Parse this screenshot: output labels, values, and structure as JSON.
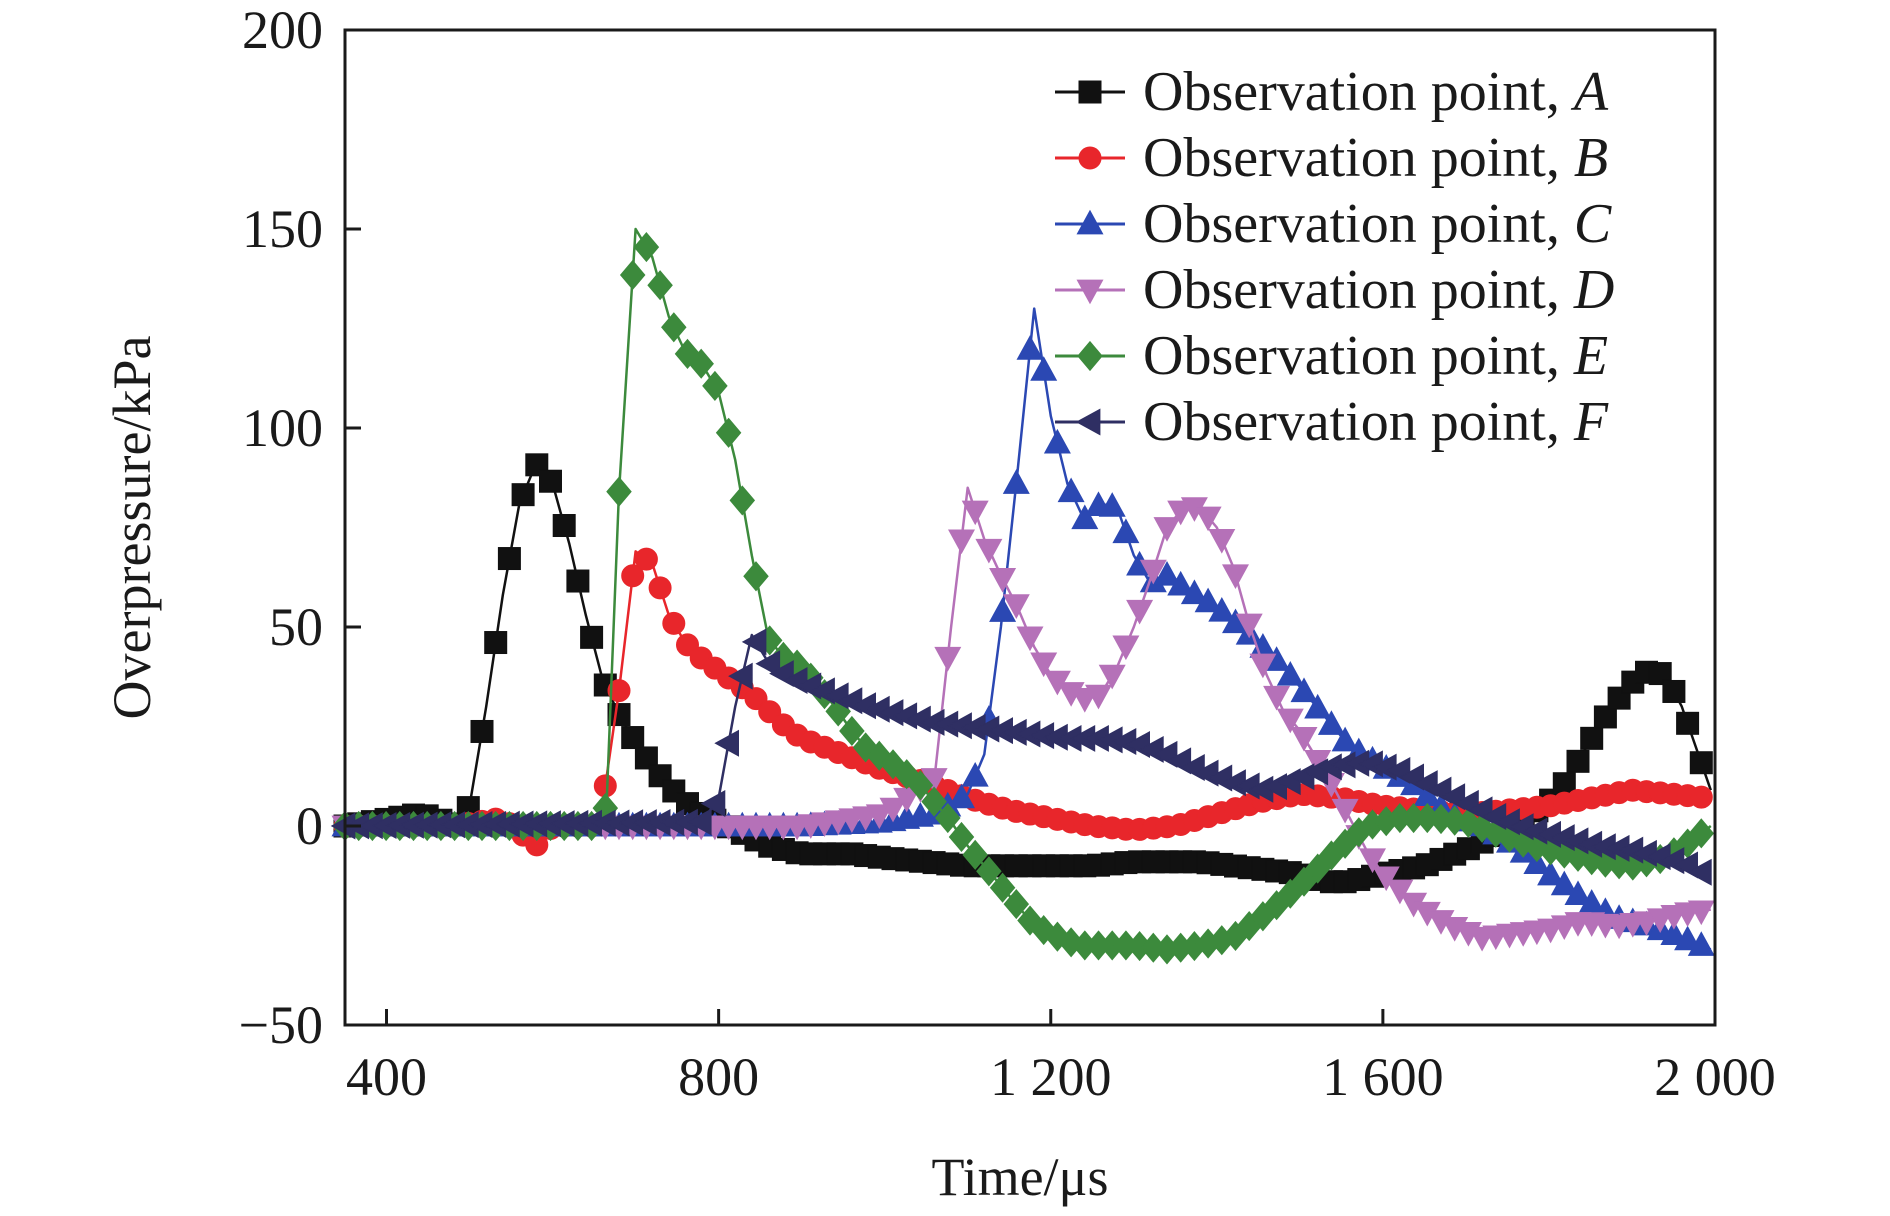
{
  "chart_data": {
    "type": "line",
    "title": "",
    "xlabel": "Time/μs",
    "ylabel": "Overpressure/kPa",
    "xlim": [
      350,
      2000
    ],
    "ylim": [
      -50,
      200
    ],
    "xticks": [
      400,
      800,
      1200,
      1600,
      2000
    ],
    "xtick_labels": [
      "400",
      "800",
      "1 200",
      "1 600",
      "2 000"
    ],
    "yticks": [
      -50,
      0,
      50,
      100,
      150,
      200
    ],
    "ytick_labels": [
      "−50",
      "0",
      "50",
      "100",
      "150",
      "200"
    ],
    "grid": false,
    "legend_position": "top-right",
    "series": [
      {
        "name": "Observation point, A",
        "legend_prefix": "Observation point, ",
        "legend_suffix": "A",
        "color": "#111111",
        "marker": "square",
        "points": [
          [
            350,
            0
          ],
          [
            440,
            3
          ],
          [
            460,
            2
          ],
          [
            480,
            0
          ],
          [
            500,
            5
          ],
          [
            520,
            30
          ],
          [
            540,
            58
          ],
          [
            560,
            81
          ],
          [
            580,
            91
          ],
          [
            600,
            86
          ],
          [
            620,
            71
          ],
          [
            640,
            53
          ],
          [
            660,
            37
          ],
          [
            680,
            28
          ],
          [
            700,
            21
          ],
          [
            720,
            15
          ],
          [
            740,
            10
          ],
          [
            760,
            6
          ],
          [
            780,
            3
          ],
          [
            800,
            1
          ],
          [
            860,
            -5
          ],
          [
            900,
            -7
          ],
          [
            960,
            -7
          ],
          [
            1000,
            -8
          ],
          [
            1100,
            -10
          ],
          [
            1200,
            -10
          ],
          [
            1250,
            -10
          ],
          [
            1300,
            -9
          ],
          [
            1340,
            -9
          ],
          [
            1380,
            -9
          ],
          [
            1420,
            -10
          ],
          [
            1460,
            -11
          ],
          [
            1500,
            -12
          ],
          [
            1530,
            -14
          ],
          [
            1560,
            -14
          ],
          [
            1600,
            -12
          ],
          [
            1650,
            -10
          ],
          [
            1700,
            -6
          ],
          [
            1760,
            0
          ],
          [
            1800,
            6
          ],
          [
            1820,
            11
          ],
          [
            1840,
            18
          ],
          [
            1860,
            25
          ],
          [
            1880,
            31
          ],
          [
            1900,
            36
          ],
          [
            1920,
            39
          ],
          [
            1940,
            38
          ],
          [
            1960,
            30
          ],
          [
            1980,
            18
          ],
          [
            1995,
            9
          ]
        ]
      },
      {
        "name": "Observation point, B",
        "legend_prefix": "Observation point, ",
        "legend_suffix": "B",
        "color": "#e8262b",
        "marker": "circle",
        "points": [
          [
            350,
            0
          ],
          [
            480,
            0
          ],
          [
            540,
            2
          ],
          [
            580,
            -5
          ],
          [
            600,
            0
          ],
          [
            650,
            0
          ],
          [
            660,
            5
          ],
          [
            680,
            34
          ],
          [
            700,
            69
          ],
          [
            720,
            66
          ],
          [
            740,
            53
          ],
          [
            760,
            46
          ],
          [
            780,
            42
          ],
          [
            800,
            39
          ],
          [
            820,
            36
          ],
          [
            840,
            33
          ],
          [
            860,
            29
          ],
          [
            880,
            25
          ],
          [
            900,
            22
          ],
          [
            950,
            18
          ],
          [
            1000,
            14
          ],
          [
            1050,
            11
          ],
          [
            1100,
            7
          ],
          [
            1150,
            4
          ],
          [
            1200,
            2
          ],
          [
            1250,
            0
          ],
          [
            1300,
            -1
          ],
          [
            1350,
            0
          ],
          [
            1400,
            3
          ],
          [
            1450,
            6
          ],
          [
            1500,
            8
          ],
          [
            1550,
            7
          ],
          [
            1600,
            5
          ],
          [
            1650,
            4
          ],
          [
            1700,
            3
          ],
          [
            1750,
            4
          ],
          [
            1800,
            5
          ],
          [
            1850,
            7
          ],
          [
            1900,
            9
          ],
          [
            1950,
            8
          ],
          [
            1995,
            7
          ]
        ]
      },
      {
        "name": "Observation point, C",
        "legend_prefix": "Observation point, ",
        "legend_suffix": "C",
        "color": "#2b48b3",
        "marker": "triangle-up",
        "points": [
          [
            350,
            0
          ],
          [
            900,
            0
          ],
          [
            1000,
            1
          ],
          [
            1060,
            3
          ],
          [
            1100,
            8
          ],
          [
            1120,
            18
          ],
          [
            1140,
            50
          ],
          [
            1160,
            89
          ],
          [
            1180,
            130
          ],
          [
            1200,
            103
          ],
          [
            1220,
            86
          ],
          [
            1240,
            77
          ],
          [
            1260,
            81
          ],
          [
            1280,
            80
          ],
          [
            1300,
            68
          ],
          [
            1320,
            61
          ],
          [
            1340,
            63
          ],
          [
            1360,
            60
          ],
          [
            1400,
            55
          ],
          [
            1440,
            48
          ],
          [
            1480,
            40
          ],
          [
            1520,
            30
          ],
          [
            1560,
            20
          ],
          [
            1600,
            15
          ],
          [
            1640,
            10
          ],
          [
            1680,
            3
          ],
          [
            1720,
            0
          ],
          [
            1760,
            -5
          ],
          [
            1800,
            -12
          ],
          [
            1840,
            -18
          ],
          [
            1880,
            -23
          ],
          [
            1920,
            -25
          ],
          [
            1960,
            -28
          ],
          [
            1995,
            -31
          ]
        ]
      },
      {
        "name": "Observation point, D",
        "legend_prefix": "Observation point, ",
        "legend_suffix": "D",
        "color": "#b571b8",
        "marker": "triangle-down",
        "points": [
          [
            350,
            0
          ],
          [
            900,
            0
          ],
          [
            1000,
            3
          ],
          [
            1060,
            12
          ],
          [
            1080,
            50
          ],
          [
            1100,
            85
          ],
          [
            1120,
            72
          ],
          [
            1140,
            63
          ],
          [
            1160,
            55
          ],
          [
            1180,
            45
          ],
          [
            1200,
            38
          ],
          [
            1220,
            34
          ],
          [
            1240,
            32
          ],
          [
            1260,
            33
          ],
          [
            1280,
            40
          ],
          [
            1300,
            50
          ],
          [
            1320,
            62
          ],
          [
            1340,
            75
          ],
          [
            1360,
            80
          ],
          [
            1380,
            80
          ],
          [
            1400,
            75
          ],
          [
            1420,
            65
          ],
          [
            1440,
            50
          ],
          [
            1460,
            38
          ],
          [
            1480,
            29
          ],
          [
            1500,
            24
          ],
          [
            1520,
            17
          ],
          [
            1540,
            10
          ],
          [
            1560,
            2
          ],
          [
            1580,
            -6
          ],
          [
            1600,
            -12
          ],
          [
            1640,
            -20
          ],
          [
            1680,
            -25
          ],
          [
            1720,
            -28
          ],
          [
            1760,
            -27
          ],
          [
            1800,
            -26
          ],
          [
            1840,
            -24
          ],
          [
            1880,
            -25
          ],
          [
            1920,
            -24
          ],
          [
            1960,
            -22
          ],
          [
            1995,
            -21
          ]
        ]
      },
      {
        "name": "Observation point, E",
        "legend_prefix": "Observation point, ",
        "legend_suffix": "E",
        "color": "#3c8a3c",
        "marker": "diamond",
        "points": [
          [
            350,
            0
          ],
          [
            650,
            0
          ],
          [
            665,
            5
          ],
          [
            680,
            84
          ],
          [
            700,
            150
          ],
          [
            720,
            143
          ],
          [
            740,
            128
          ],
          [
            760,
            119
          ],
          [
            780,
            116
          ],
          [
            800,
            109
          ],
          [
            820,
            92
          ],
          [
            840,
            68
          ],
          [
            860,
            47
          ],
          [
            880,
            42
          ],
          [
            900,
            40
          ],
          [
            920,
            35
          ],
          [
            940,
            30
          ],
          [
            960,
            24
          ],
          [
            980,
            19
          ],
          [
            1000,
            17
          ],
          [
            1020,
            14
          ],
          [
            1040,
            11
          ],
          [
            1060,
            6
          ],
          [
            1080,
            1
          ],
          [
            1100,
            -5
          ],
          [
            1120,
            -10
          ],
          [
            1140,
            -15
          ],
          [
            1160,
            -20
          ],
          [
            1180,
            -25
          ],
          [
            1200,
            -27
          ],
          [
            1220,
            -29
          ],
          [
            1240,
            -30
          ],
          [
            1260,
            -30
          ],
          [
            1300,
            -30
          ],
          [
            1340,
            -31
          ],
          [
            1380,
            -30
          ],
          [
            1420,
            -28
          ],
          [
            1460,
            -22
          ],
          [
            1500,
            -15
          ],
          [
            1540,
            -7
          ],
          [
            1580,
            0
          ],
          [
            1620,
            2
          ],
          [
            1660,
            2
          ],
          [
            1700,
            1
          ],
          [
            1740,
            -2
          ],
          [
            1780,
            -5
          ],
          [
            1820,
            -7
          ],
          [
            1860,
            -9
          ],
          [
            1900,
            -10
          ],
          [
            1940,
            -8
          ],
          [
            1970,
            -4
          ],
          [
            1995,
            0
          ]
        ]
      },
      {
        "name": "Observation point, F",
        "legend_prefix": "Observation point, ",
        "legend_suffix": "F",
        "color": "#2f2f63",
        "marker": "triangle-left",
        "points": [
          [
            350,
            0
          ],
          [
            780,
            1
          ],
          [
            800,
            7
          ],
          [
            820,
            30
          ],
          [
            840,
            48
          ],
          [
            860,
            41
          ],
          [
            880,
            38
          ],
          [
            900,
            36
          ],
          [
            940,
            33
          ],
          [
            980,
            30
          ],
          [
            1020,
            28
          ],
          [
            1060,
            26
          ],
          [
            1100,
            25
          ],
          [
            1140,
            24
          ],
          [
            1180,
            23
          ],
          [
            1220,
            22
          ],
          [
            1260,
            22
          ],
          [
            1300,
            21
          ],
          [
            1340,
            18
          ],
          [
            1380,
            14
          ],
          [
            1420,
            11
          ],
          [
            1460,
            9
          ],
          [
            1500,
            12
          ],
          [
            1540,
            15
          ],
          [
            1580,
            16
          ],
          [
            1620,
            14
          ],
          [
            1660,
            10
          ],
          [
            1700,
            6
          ],
          [
            1740,
            2
          ],
          [
            1780,
            -1
          ],
          [
            1820,
            -3
          ],
          [
            1860,
            -5
          ],
          [
            1900,
            -6
          ],
          [
            1940,
            -8
          ],
          [
            1970,
            -10
          ],
          [
            1995,
            -13
          ]
        ]
      }
    ]
  }
}
